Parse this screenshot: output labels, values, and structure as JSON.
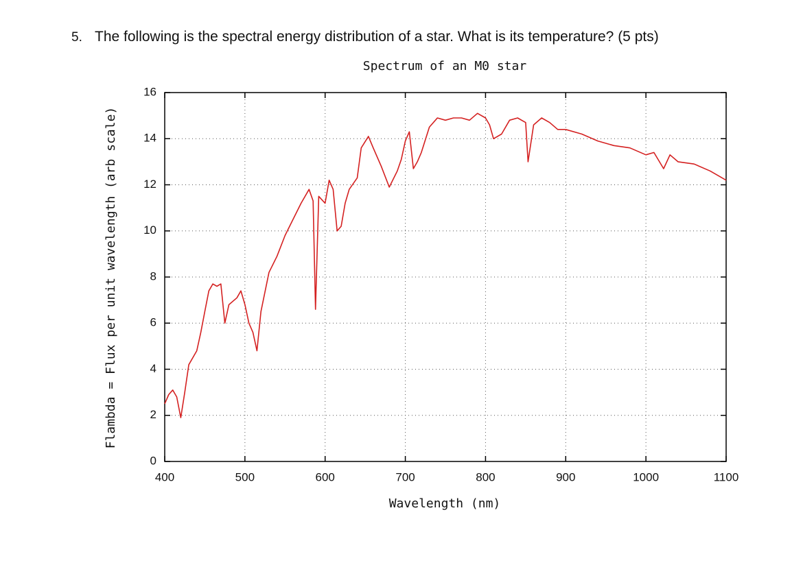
{
  "question": {
    "number": "5.",
    "text": "The following is the spectral energy distribution of a star. What is its temperature? (5 pts)"
  },
  "chart_data": {
    "type": "line",
    "title": "Spectrum of an M0 star",
    "x_label": "Wavelength (nm)",
    "y_label": "Flambda = Flux per unit wavelength (arb scale)",
    "xlim": [
      400,
      1100
    ],
    "ylim": [
      0,
      16
    ],
    "xticks": [
      400,
      500,
      600,
      700,
      800,
      900,
      1000,
      1100
    ],
    "yticks": [
      0,
      2,
      4,
      6,
      8,
      10,
      12,
      14,
      16
    ],
    "grid": true,
    "series": [
      {
        "color": "#d42020",
        "x": [
          400,
          405,
          410,
          415,
          420,
          425,
          430,
          440,
          445,
          450,
          455,
          460,
          465,
          470,
          475,
          480,
          490,
          495,
          500,
          505,
          510,
          515,
          520,
          530,
          540,
          550,
          560,
          570,
          580,
          585,
          588,
          592,
          600,
          605,
          610,
          615,
          620,
          625,
          630,
          640,
          645,
          654,
          660,
          670,
          680,
          690,
          695,
          700,
          705,
          710,
          715,
          720,
          730,
          740,
          750,
          760,
          770,
          780,
          790,
          800,
          805,
          810,
          820,
          830,
          840,
          850,
          853,
          860,
          870,
          880,
          890,
          900,
          920,
          940,
          960,
          980,
          1000,
          1010,
          1022,
          1030,
          1040,
          1060,
          1080,
          1100
        ],
        "values": [
          2.5,
          2.9,
          3.1,
          2.8,
          1.9,
          3.0,
          4.2,
          4.8,
          5.6,
          6.5,
          7.4,
          7.7,
          7.6,
          7.7,
          6.0,
          6.8,
          7.1,
          7.4,
          6.8,
          6.0,
          5.6,
          4.8,
          6.5,
          8.2,
          8.9,
          9.8,
          10.5,
          11.2,
          11.8,
          11.3,
          6.6,
          11.5,
          11.2,
          12.2,
          11.8,
          10.0,
          10.2,
          11.2,
          11.8,
          12.3,
          13.6,
          14.1,
          13.6,
          12.8,
          11.9,
          12.6,
          13.1,
          13.9,
          14.3,
          12.7,
          13.0,
          13.4,
          14.5,
          14.9,
          14.8,
          14.9,
          14.9,
          14.8,
          15.1,
          14.9,
          14.6,
          14.0,
          14.2,
          14.8,
          14.9,
          14.7,
          13.0,
          14.6,
          14.9,
          14.7,
          14.4,
          14.4,
          14.2,
          13.9,
          13.7,
          13.6,
          13.3,
          13.4,
          12.7,
          13.3,
          13.0,
          12.9,
          12.6,
          12.2
        ]
      }
    ]
  }
}
